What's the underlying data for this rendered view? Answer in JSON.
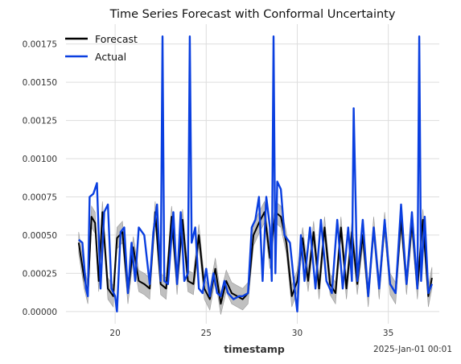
{
  "chart_data": {
    "type": "line",
    "title": "Time Series Forecast with Conformal Uncertainty",
    "xlabel": "timestamp",
    "x_offset_label": "2025-Jan-01 00:01",
    "ylabel": "",
    "xlim": [
      17.3,
      37.8
    ],
    "ylim": [
      -8e-05,
      0.00188
    ],
    "x_ticks": [
      20,
      25,
      30,
      35
    ],
    "x_tick_labels": [
      "20",
      "25",
      "30",
      "35"
    ],
    "y_ticks": [
      0,
      0.00025,
      0.0005,
      0.00075,
      0.001,
      0.00125,
      0.0015,
      0.00175
    ],
    "y_tick_labels": [
      "0.00000",
      "0.00025",
      "0.00050",
      "0.00075",
      "0.00100",
      "0.00125",
      "0.00150",
      "0.00175"
    ],
    "grid": true,
    "legend_position": "top-left",
    "legend": [
      "Forecast",
      "Actual"
    ],
    "colors": {
      "forecast": "#000000",
      "actual": "#0a3fe0",
      "band": "#b5b5b5"
    },
    "series": [
      {
        "name": "Forecast",
        "x": [
          18.0,
          18.3,
          18.5,
          18.7,
          18.9,
          19.1,
          19.3,
          19.6,
          19.9,
          20.1,
          20.4,
          20.7,
          21.0,
          21.3,
          21.6,
          21.9,
          22.2,
          22.5,
          22.8,
          23.1,
          23.4,
          23.7,
          24.0,
          24.3,
          24.6,
          24.9,
          25.2,
          25.5,
          25.8,
          26.1,
          26.4,
          26.7,
          27.0,
          27.3,
          27.6,
          27.9,
          28.2,
          28.5,
          28.8,
          29.1,
          29.4,
          29.7,
          30.0,
          30.3,
          30.6,
          30.9,
          31.2,
          31.5,
          31.8,
          32.1,
          32.4,
          32.7,
          33.0,
          33.3,
          33.6,
          33.9,
          34.2,
          34.5,
          34.8,
          35.1,
          35.4,
          35.7,
          36.0,
          36.3,
          36.6,
          36.9,
          37.2,
          37.4
        ],
        "y": [
          0.00045,
          0.00022,
          0.00012,
          0.00062,
          0.00058,
          0.0002,
          0.00065,
          0.00015,
          0.0001,
          0.00048,
          0.00052,
          0.00012,
          0.00042,
          0.0002,
          0.00018,
          0.00015,
          0.00065,
          0.00018,
          0.00015,
          0.00062,
          0.00018,
          0.0006,
          0.0002,
          0.00018,
          0.0005,
          0.00015,
          8e-05,
          0.00028,
          5e-05,
          0.0002,
          0.00012,
          0.0001,
          8e-05,
          0.00012,
          0.0005,
          0.00058,
          0.00065,
          0.00035,
          0.00065,
          0.00062,
          0.00045,
          0.0001,
          0.0002,
          0.00048,
          0.0002,
          0.00052,
          0.00015,
          0.00055,
          0.00018,
          0.00012,
          0.00055,
          0.00015,
          0.00052,
          0.00018,
          0.0005,
          0.0001,
          0.00055,
          0.00015,
          0.00058,
          0.00018,
          0.00012,
          0.0006,
          0.00018,
          0.00058,
          0.00015,
          0.0006,
          0.0001,
          0.00022
        ]
      },
      {
        "name": "Actual",
        "x": [
          18.0,
          18.2,
          18.4,
          18.5,
          18.6,
          18.8,
          19.0,
          19.2,
          19.4,
          19.6,
          19.8,
          20.0,
          20.1,
          20.3,
          20.5,
          20.7,
          20.9,
          21.1,
          21.3,
          21.6,
          21.9,
          22.1,
          22.3,
          22.5,
          22.6,
          22.7,
          22.9,
          23.2,
          23.4,
          23.6,
          23.8,
          24.0,
          24.1,
          24.2,
          24.4,
          24.6,
          24.8,
          25.0,
          25.2,
          25.4,
          25.6,
          25.8,
          26.0,
          26.2,
          26.5,
          26.8,
          27.0,
          27.3,
          27.5,
          27.7,
          27.9,
          28.1,
          28.3,
          28.5,
          28.6,
          28.7,
          28.8,
          28.9,
          29.1,
          29.3,
          29.6,
          29.9,
          30.0,
          30.2,
          30.4,
          30.7,
          31.0,
          31.3,
          31.6,
          31.9,
          32.2,
          32.5,
          32.8,
          33.0,
          33.1,
          33.3,
          33.6,
          33.9,
          34.2,
          34.5,
          34.8,
          35.1,
          35.4,
          35.7,
          36.0,
          36.3,
          36.6,
          36.7,
          36.8,
          37.0,
          37.2,
          37.4
        ],
        "y": [
          0.00047,
          0.00045,
          0.00015,
          0.0001,
          0.00075,
          0.00077,
          0.00084,
          0.00015,
          0.00065,
          0.0007,
          0.00015,
          0.0001,
          0.0,
          0.00052,
          0.00055,
          0.00012,
          0.00045,
          0.0002,
          0.00055,
          0.0005,
          0.00018,
          0.00052,
          0.0007,
          0.0002,
          0.0018,
          0.0002,
          0.00018,
          0.00065,
          0.00018,
          0.00065,
          0.0002,
          0.00025,
          0.0018,
          0.00045,
          0.00055,
          0.00015,
          0.00012,
          0.00028,
          0.0001,
          0.00025,
          0.00012,
          0.0001,
          0.0002,
          0.00012,
          8e-05,
          0.0001,
          0.0001,
          0.00012,
          0.00055,
          0.0006,
          0.00075,
          0.0002,
          0.00075,
          0.00055,
          0.0002,
          0.0018,
          0.00025,
          0.00085,
          0.0008,
          0.0005,
          0.00045,
          0.0001,
          0.0,
          0.0005,
          0.0002,
          0.00055,
          0.00015,
          0.0006,
          0.0002,
          0.00012,
          0.0006,
          0.00015,
          0.00055,
          0.0002,
          0.00133,
          0.0002,
          0.0006,
          0.0001,
          0.00055,
          0.00015,
          0.0006,
          0.00018,
          0.00012,
          0.0007,
          0.00018,
          0.00065,
          0.00015,
          0.0018,
          0.0002,
          0.00062,
          0.00012,
          0.00018
        ]
      }
    ]
  }
}
